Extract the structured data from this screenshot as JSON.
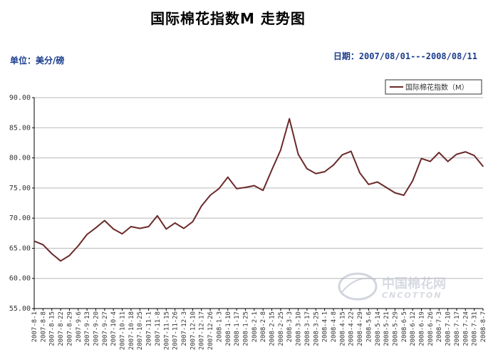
{
  "header": {
    "title": "国际棉花指数M 走势图",
    "unit_label": "单位：美分/磅",
    "date_range": "日期：2007/08/01---2008/08/11"
  },
  "watermark": {
    "text_cn": "中国棉花网",
    "text_en": "CNCOTTON"
  },
  "colors": {
    "line": "#6b2a2a",
    "grid": "#b8b8b8",
    "axis": "#000000"
  },
  "chart_data": {
    "type": "line",
    "title": "国际棉花指数M 走势图",
    "ylabel": "单位：美分/磅",
    "ylim": [
      55,
      90
    ],
    "yticks": [
      "55.00",
      "60.00",
      "65.00",
      "70.00",
      "75.00",
      "80.00",
      "85.00",
      "90.00"
    ],
    "grid": true,
    "legend_position": "top-right",
    "categories": [
      "2007-8-1",
      "2007-8-8",
      "2007-8-15",
      "2007-8-22",
      "2007-8-29",
      "2007-9-6",
      "2007-9-13",
      "2007-9-20",
      "2007-9-27",
      "2007-10-4",
      "2007-10-11",
      "2007-10-18",
      "2007-10-25",
      "2007-11-1",
      "2007-11-8",
      "2007-11-15",
      "2007-11-26",
      "2007-12-3",
      "2007-12-10",
      "2007-12-17",
      "2007-12-26",
      "2008-1-3",
      "2008-1-10",
      "2008-1-17",
      "2008-1-25",
      "2008-2-1",
      "2008-2-8",
      "2008-2-15",
      "2008-2-25",
      "2008-3-3",
      "2008-3-10",
      "2008-3-17",
      "2008-3-25",
      "2008-4-1",
      "2008-4-8",
      "2008-4-15",
      "2008-4-22",
      "2008-4-29",
      "2008-5-6",
      "2008-5-14",
      "2008-5-21",
      "2008-5-29",
      "2008-6-5",
      "2008-6-12",
      "2008-6-19",
      "2008-6-26",
      "2008-7-3",
      "2008-7-10",
      "2008-7-17",
      "2008-7-24",
      "2008-7-31",
      "2008-8-7"
    ],
    "series": [
      {
        "name": "国际棉花指数（M）",
        "values": [
          66.2,
          65.6,
          64.1,
          62.9,
          63.8,
          65.4,
          67.3,
          68.4,
          69.6,
          68.2,
          67.4,
          68.6,
          68.3,
          68.6,
          70.4,
          68.2,
          69.2,
          68.3,
          69.4,
          72.0,
          73.8,
          74.9,
          76.8,
          74.9,
          75.1,
          75.4,
          74.6,
          78.0,
          81.3,
          86.5,
          80.6,
          78.2,
          77.4,
          77.7,
          78.8,
          80.5,
          81.1,
          77.5,
          75.6,
          76.0,
          75.1,
          74.2,
          73.8,
          76.2,
          79.9,
          79.4,
          80.9,
          79.4,
          80.6,
          81.0,
          80.4,
          78.6
        ]
      }
    ]
  }
}
